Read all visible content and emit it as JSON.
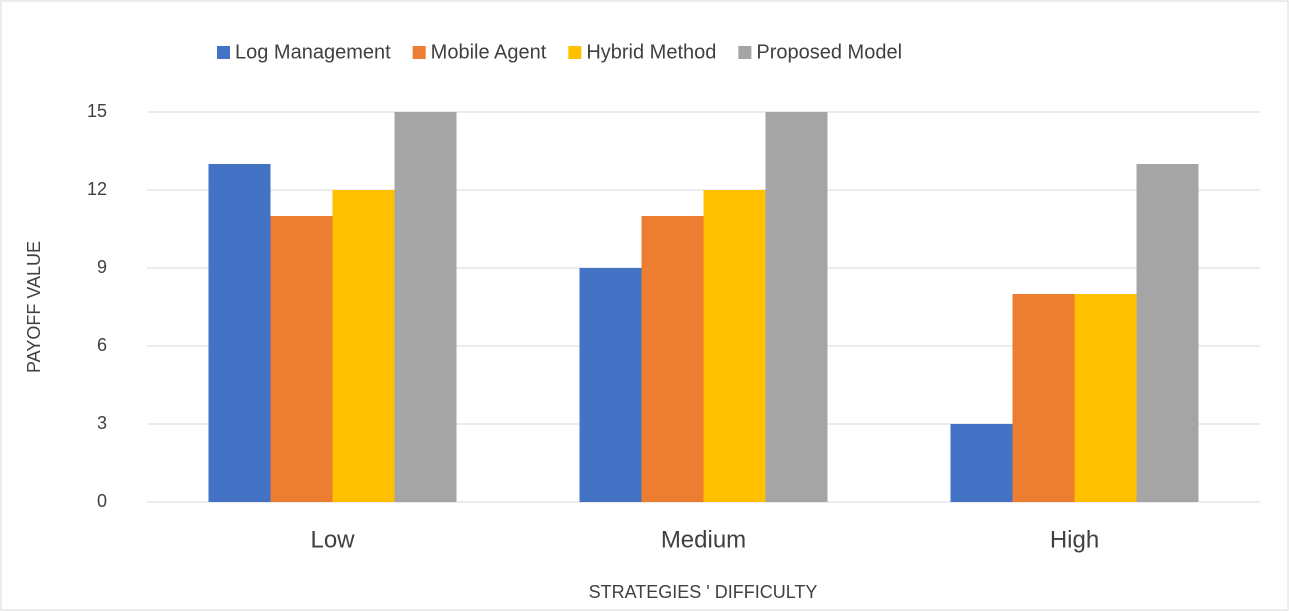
{
  "chart_data": {
    "type": "bar",
    "categories": [
      "Low",
      "Medium",
      "High"
    ],
    "series": [
      {
        "name": "Log Management",
        "color": "#4472c4",
        "values": [
          13,
          9,
          3
        ]
      },
      {
        "name": "Mobile Agent",
        "color": "#ed7d31",
        "values": [
          11,
          11,
          8
        ]
      },
      {
        "name": "Hybrid Method",
        "color": "#ffc000",
        "values": [
          12,
          12,
          8
        ]
      },
      {
        "name": "Proposed Model",
        "color": "#a5a5a5",
        "values": [
          15,
          15,
          13
        ]
      }
    ],
    "x_label": "STRATEGIES ' DIFFICULTY",
    "y_label": "PAYOFF VALUE",
    "ylim": [
      0,
      15
    ],
    "yticks": [
      0,
      3,
      6,
      9,
      12,
      15
    ],
    "grid": true,
    "legend": "top"
  }
}
